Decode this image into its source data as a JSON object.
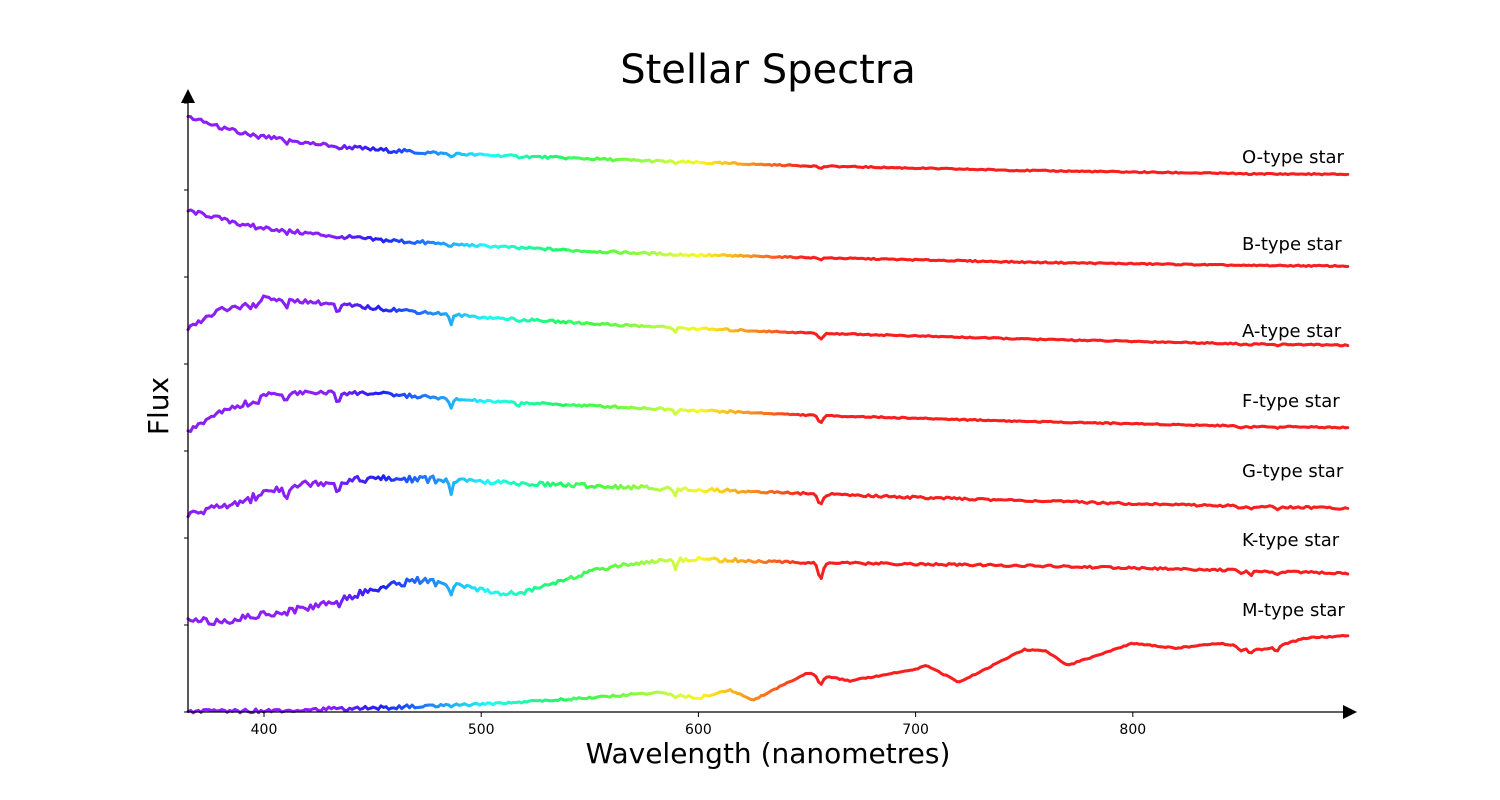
{
  "chart_data": {
    "type": "line",
    "title": "Stellar Spectra",
    "xlabel": "Wavelength (nanometres)",
    "ylabel": "Flux",
    "xlim": [
      365,
      900
    ],
    "xticks": [
      400,
      500,
      600,
      700,
      800
    ],
    "xtick_labels": [
      "400",
      "500",
      "600",
      "700",
      "800"
    ],
    "y_ticks_labeled": false,
    "grid": false,
    "color_by_wavelength": "rainbow (violet at short wavelengths to red at long wavelengths)",
    "absorption_lines_nm": [
      {
        "wl": 383.5,
        "depth": 0.3
      },
      {
        "wl": 388.9,
        "depth": 0.5
      },
      {
        "wl": 393.4,
        "depth": 0.6
      },
      {
        "wl": 396.8,
        "depth": 0.6
      },
      {
        "wl": 410.2,
        "depth": 0.8
      },
      {
        "wl": 434.0,
        "depth": 0.9
      },
      {
        "wl": 486.1,
        "depth": 1.0
      },
      {
        "wl": 517.0,
        "depth": 0.3
      },
      {
        "wl": 589.3,
        "depth": 0.5
      },
      {
        "wl": 656.3,
        "depth": 1.0
      },
      {
        "wl": 849.8,
        "depth": 0.3
      },
      {
        "wl": 854.2,
        "depth": 0.35
      },
      {
        "wl": 866.2,
        "depth": 0.3
      }
    ],
    "series": [
      {
        "name": "O-type star",
        "offset": 6,
        "x": [
          365,
          380,
          400,
          420,
          450,
          480,
          500,
          550,
          600,
          650,
          700,
          750,
          800,
          850,
          900
        ],
        "y": [
          0.94,
          0.8,
          0.68,
          0.6,
          0.52,
          0.47,
          0.45,
          0.4,
          0.35,
          0.31,
          0.28,
          0.25,
          0.23,
          0.21,
          0.2
        ]
      },
      {
        "name": "B-type star",
        "offset": 5,
        "x": [
          365,
          380,
          400,
          420,
          450,
          480,
          500,
          550,
          600,
          650,
          700,
          750,
          800,
          850,
          900
        ],
        "y": [
          0.85,
          0.75,
          0.63,
          0.56,
          0.48,
          0.43,
          0.4,
          0.33,
          0.28,
          0.25,
          0.22,
          0.19,
          0.17,
          0.15,
          0.14
        ]
      },
      {
        "name": "A-type star",
        "offset": 4,
        "x": [
          365,
          380,
          400,
          420,
          450,
          480,
          500,
          550,
          600,
          650,
          700,
          750,
          800,
          850,
          900
        ],
        "y": [
          0.45,
          0.7,
          0.85,
          0.8,
          0.72,
          0.65,
          0.6,
          0.52,
          0.45,
          0.4,
          0.36,
          0.32,
          0.29,
          0.26,
          0.24
        ]
      },
      {
        "name": "F-type star",
        "offset": 3,
        "x": [
          365,
          380,
          400,
          420,
          450,
          480,
          500,
          550,
          600,
          650,
          700,
          750,
          800,
          850,
          900
        ],
        "y": [
          0.25,
          0.5,
          0.72,
          0.75,
          0.74,
          0.68,
          0.64,
          0.58,
          0.52,
          0.46,
          0.42,
          0.38,
          0.35,
          0.32,
          0.3
        ]
      },
      {
        "name": "G-type star",
        "offset": 2,
        "x": [
          365,
          380,
          400,
          420,
          450,
          480,
          500,
          550,
          600,
          650,
          700,
          750,
          800,
          850,
          900
        ],
        "y": [
          0.3,
          0.4,
          0.6,
          0.7,
          0.76,
          0.75,
          0.72,
          0.67,
          0.62,
          0.57,
          0.52,
          0.48,
          0.44,
          0.41,
          0.38
        ]
      },
      {
        "name": "K-type star",
        "offset": 1,
        "x": [
          365,
          380,
          400,
          420,
          450,
          470,
          490,
          510,
          520,
          540,
          560,
          580,
          600,
          620,
          650,
          700,
          750,
          800,
          850,
          900
        ],
        "y": [
          0.05,
          0.05,
          0.14,
          0.22,
          0.45,
          0.58,
          0.5,
          0.4,
          0.42,
          0.6,
          0.75,
          0.82,
          0.85,
          0.82,
          0.8,
          0.78,
          0.76,
          0.73,
          0.7,
          0.66
        ]
      },
      {
        "name": "M-type star",
        "offset": 0,
        "x": [
          365,
          400,
          450,
          480,
          500,
          550,
          580,
          600,
          615,
          625,
          650,
          670,
          700,
          705,
          720,
          750,
          760,
          770,
          800,
          820,
          840,
          860,
          880,
          900
        ],
        "y": [
          0.01,
          0.02,
          0.05,
          0.08,
          0.1,
          0.18,
          0.25,
          0.18,
          0.28,
          0.15,
          0.5,
          0.4,
          0.55,
          0.6,
          0.38,
          0.8,
          0.78,
          0.6,
          0.88,
          0.82,
          0.88,
          0.8,
          0.95,
          0.98
        ]
      }
    ]
  }
}
